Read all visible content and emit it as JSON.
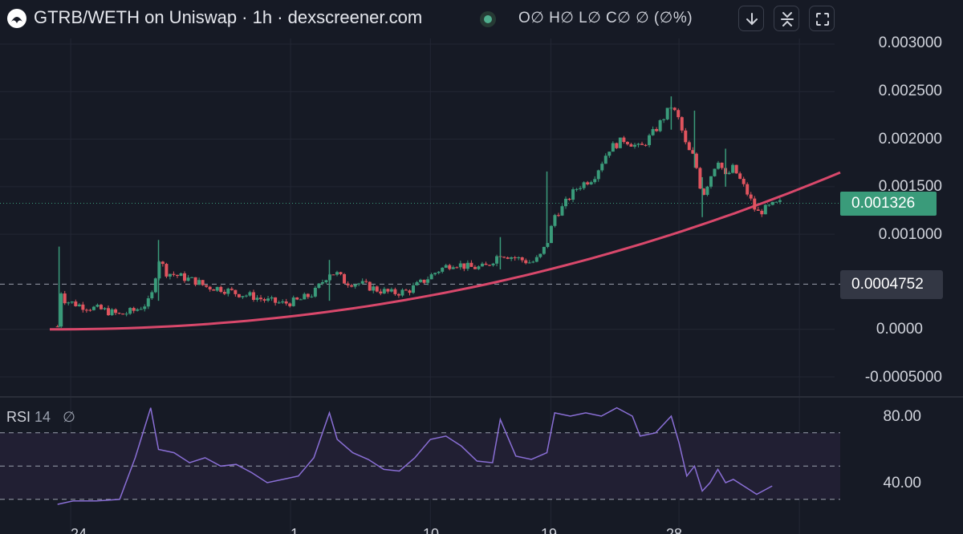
{
  "header": {
    "title": "GTRB/WETH on Uniswap · 1h · dexscreener.com",
    "ohlc": "O∅ H∅ L∅ C∅ ∅ (∅%)",
    "buttons": [
      {
        "name": "download",
        "icon": "download-arrow-icon"
      },
      {
        "name": "collapse",
        "icon": "collapse-icon"
      },
      {
        "name": "fullscreen",
        "icon": "fullscreen-icon"
      }
    ]
  },
  "price_axis": {
    "labels": [
      "0.003000",
      "0.002500",
      "0.002000",
      "0.001500",
      "0.001000",
      "0.0000",
      "-0.0005000"
    ],
    "last_price": "0.001326",
    "horizontal_line": "0.0004752"
  },
  "rsi": {
    "name": "RSI",
    "period": "14",
    "value": "∅",
    "axis_labels": [
      "80.00",
      "40.00"
    ]
  },
  "x_axis": {
    "ticks": [
      "24",
      "1",
      "10",
      "19",
      "28",
      "",
      ""
    ]
  },
  "colors": {
    "background": "#161a25",
    "up": "#3a9b7a",
    "down": "#e0545e",
    "trendline": "#d9486b",
    "rsi_line": "#8a6fd6",
    "rsi_band": "#211f33"
  },
  "chart_data": [
    {
      "type": "candlestick",
      "title": "GTRB/WETH",
      "ylim": [
        -0.0005,
        0.003
      ],
      "yticks": [
        0.003,
        0.0025,
        0.002,
        0.0015,
        0.001,
        0,
        -0.0005
      ],
      "horizontal_line": 0.0004752,
      "last_price": 0.001326,
      "close_path": [
        [
          0.01,
          3e-05
        ],
        [
          0.012,
          0.00045
        ],
        [
          0.02,
          0.0003
        ],
        [
          0.04,
          0.00025
        ],
        [
          0.07,
          0.0002
        ],
        [
          0.09,
          0.00015
        ],
        [
          0.11,
          0.0002
        ],
        [
          0.13,
          0.0003
        ],
        [
          0.14,
          0.00075
        ],
        [
          0.15,
          0.0006
        ],
        [
          0.17,
          0.00055
        ],
        [
          0.19,
          0.0005
        ],
        [
          0.2,
          0.00045
        ],
        [
          0.22,
          0.00043
        ],
        [
          0.24,
          0.00038
        ],
        [
          0.26,
          0.00035
        ],
        [
          0.28,
          0.0003
        ],
        [
          0.3,
          0.00027
        ],
        [
          0.32,
          0.0003
        ],
        [
          0.34,
          0.00038
        ],
        [
          0.36,
          0.0006
        ],
        [
          0.37,
          0.00058
        ],
        [
          0.38,
          0.0005
        ],
        [
          0.4,
          0.00048
        ],
        [
          0.42,
          0.00042
        ],
        [
          0.44,
          0.00038
        ],
        [
          0.46,
          0.0004
        ],
        [
          0.48,
          0.0005
        ],
        [
          0.5,
          0.00062
        ],
        [
          0.52,
          0.0007
        ],
        [
          0.54,
          0.00065
        ],
        [
          0.56,
          0.00065
        ],
        [
          0.58,
          0.0008
        ],
        [
          0.6,
          0.00075
        ],
        [
          0.62,
          0.0007
        ],
        [
          0.63,
          0.00075
        ],
        [
          0.64,
          0.0009
        ],
        [
          0.65,
          0.0012
        ],
        [
          0.66,
          0.00128
        ],
        [
          0.67,
          0.0014
        ],
        [
          0.68,
          0.0015
        ],
        [
          0.7,
          0.0016
        ],
        [
          0.72,
          0.0019
        ],
        [
          0.74,
          0.002
        ],
        [
          0.76,
          0.0019
        ],
        [
          0.78,
          0.0021
        ],
        [
          0.8,
          0.00235
        ],
        [
          0.81,
          0.0022
        ],
        [
          0.82,
          0.0019
        ],
        [
          0.83,
          0.0018
        ],
        [
          0.84,
          0.0014
        ],
        [
          0.85,
          0.0016
        ],
        [
          0.86,
          0.0018
        ],
        [
          0.87,
          0.0016
        ],
        [
          0.88,
          0.0017
        ],
        [
          0.9,
          0.0014
        ],
        [
          0.91,
          0.00122
        ],
        [
          0.93,
          0.0013
        ],
        [
          0.94,
          0.001326
        ]
      ],
      "wicks": [
        {
          "x": 0.012,
          "high": 0.00087,
          "low": 2e-05
        },
        {
          "x": 0.14,
          "high": 0.00094,
          "low": 0.0003
        },
        {
          "x": 0.36,
          "high": 0.00073,
          "low": 0.0003
        },
        {
          "x": 0.58,
          "high": 0.00097,
          "low": 0.00063
        },
        {
          "x": 0.64,
          "high": 0.00166,
          "low": 0.0009
        },
        {
          "x": 0.8,
          "high": 0.00245,
          "low": 0.0021
        },
        {
          "x": 0.83,
          "high": 0.0023,
          "low": 0.0017
        },
        {
          "x": 0.84,
          "high": 0.0016,
          "low": 0.00118
        },
        {
          "x": 0.87,
          "high": 0.0019,
          "low": 0.0015
        }
      ]
    },
    {
      "type": "line",
      "title": "RSI 14",
      "ylim": [
        25,
        90
      ],
      "bands": [
        70,
        50,
        30
      ],
      "yticks": [
        80,
        40
      ],
      "values": [
        [
          0.01,
          27
        ],
        [
          0.03,
          29
        ],
        [
          0.06,
          29
        ],
        [
          0.09,
          30
        ],
        [
          0.11,
          55
        ],
        [
          0.13,
          85
        ],
        [
          0.14,
          60
        ],
        [
          0.16,
          58
        ],
        [
          0.18,
          52
        ],
        [
          0.2,
          55
        ],
        [
          0.22,
          50
        ],
        [
          0.24,
          51
        ],
        [
          0.26,
          46
        ],
        [
          0.28,
          40
        ],
        [
          0.3,
          42
        ],
        [
          0.32,
          44
        ],
        [
          0.34,
          55
        ],
        [
          0.36,
          82
        ],
        [
          0.37,
          66
        ],
        [
          0.39,
          58
        ],
        [
          0.41,
          54
        ],
        [
          0.43,
          48
        ],
        [
          0.45,
          47
        ],
        [
          0.47,
          55
        ],
        [
          0.49,
          66
        ],
        [
          0.51,
          68
        ],
        [
          0.53,
          62
        ],
        [
          0.55,
          53
        ],
        [
          0.57,
          52
        ],
        [
          0.58,
          78
        ],
        [
          0.6,
          56
        ],
        [
          0.62,
          54
        ],
        [
          0.64,
          58
        ],
        [
          0.65,
          82
        ],
        [
          0.67,
          80
        ],
        [
          0.69,
          82
        ],
        [
          0.71,
          80
        ],
        [
          0.73,
          85
        ],
        [
          0.75,
          80
        ],
        [
          0.76,
          68
        ],
        [
          0.78,
          70
        ],
        [
          0.8,
          80
        ],
        [
          0.81,
          64
        ],
        [
          0.82,
          44
        ],
        [
          0.83,
          50
        ],
        [
          0.84,
          35
        ],
        [
          0.85,
          40
        ],
        [
          0.86,
          48
        ],
        [
          0.87,
          40
        ],
        [
          0.88,
          42
        ],
        [
          0.9,
          36
        ],
        [
          0.91,
          33
        ],
        [
          0.93,
          38
        ]
      ]
    }
  ]
}
